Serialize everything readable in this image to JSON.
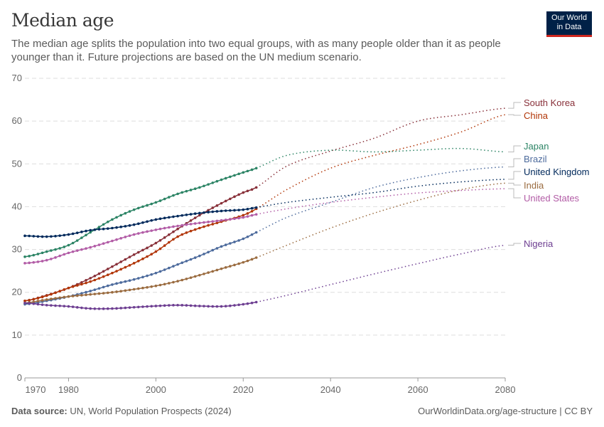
{
  "header": {
    "title": "Median age",
    "subtitle": "The median age splits the population into two equal groups, with as many people older than it as people younger than it. Future projections are based on the UN medium scenario.",
    "logo_line1": "Our World",
    "logo_line2": "in Data"
  },
  "footer": {
    "source_label": "Data source:",
    "source": "UN, World Population Prospects (2024)",
    "url": "OurWorldinData.org/age-structure | CC BY"
  },
  "chart_data": {
    "type": "line",
    "title": "Median age",
    "xlim": [
      1970,
      2080
    ],
    "ylim": [
      0,
      70
    ],
    "x_ticks": [
      1970,
      1980,
      2000,
      2020,
      2040,
      2060,
      2080
    ],
    "y_ticks": [
      0,
      10,
      20,
      30,
      40,
      50,
      60,
      70
    ],
    "grid": "horizontal dashed",
    "legend": "line-end labels right",
    "projection_start": 2023,
    "x": [
      1970,
      1975,
      1980,
      1985,
      1990,
      1995,
      2000,
      2005,
      2010,
      2015,
      2020,
      2023,
      2030,
      2040,
      2050,
      2060,
      2070,
      2080
    ],
    "series": [
      {
        "name": "South Korea",
        "color": "#883039",
        "values": [
          18,
          19.3,
          21,
          23.3,
          26,
          28.8,
          31.5,
          34.8,
          38,
          40.8,
          43.3,
          44.5,
          49.5,
          53,
          56,
          60,
          61.5,
          63
        ]
      },
      {
        "name": "China",
        "color": "#b13507",
        "values": [
          18,
          19.2,
          21,
          22.5,
          24.5,
          26.8,
          29.5,
          33,
          35,
          36.5,
          38,
          39.5,
          44,
          49,
          52,
          54.5,
          57.5,
          61.5
        ]
      },
      {
        "name": "Japan",
        "color": "#2c8465",
        "values": [
          28.3,
          29.5,
          31,
          34,
          37,
          39.3,
          41,
          43,
          44.5,
          46.3,
          48,
          49,
          52,
          53.2,
          52.8,
          53.2,
          53.6,
          52.8
        ]
      },
      {
        "name": "Brazil",
        "color": "#4c6a9c",
        "values": [
          17.2,
          18,
          19,
          20.3,
          21.8,
          23,
          24.5,
          26.5,
          28.5,
          30.7,
          32.5,
          34,
          37.5,
          41,
          44.5,
          46.8,
          48.4,
          49.3
        ]
      },
      {
        "name": "United Kingdom",
        "color": "#00295b",
        "values": [
          33.2,
          33,
          33.5,
          34.5,
          35,
          35.8,
          37,
          37.8,
          38.5,
          39,
          39.3,
          39.8,
          41,
          42.2,
          43.3,
          44.8,
          45.8,
          46.4
        ]
      },
      {
        "name": "India",
        "color": "#9a6b3f",
        "values": [
          17.5,
          18.3,
          19,
          19.5,
          20,
          20.7,
          21.5,
          22.6,
          24,
          25.5,
          27,
          28.1,
          31,
          35,
          38.5,
          41.5,
          44,
          45.5
        ]
      },
      {
        "name": "United States",
        "color": "#b25ca6",
        "values": [
          26.8,
          27.5,
          29.2,
          30.5,
          32,
          33.5,
          34.6,
          35.5,
          36.2,
          36.8,
          37.5,
          38.2,
          39.5,
          41,
          42.2,
          43.2,
          43.8,
          44.2
        ]
      },
      {
        "name": "Nigeria",
        "color": "#6d3e91",
        "values": [
          17.5,
          17,
          16.7,
          16.2,
          16.2,
          16.5,
          16.8,
          17,
          16.8,
          16.7,
          17.2,
          17.7,
          19.3,
          21.8,
          24.3,
          26.7,
          29,
          31
        ]
      }
    ]
  }
}
